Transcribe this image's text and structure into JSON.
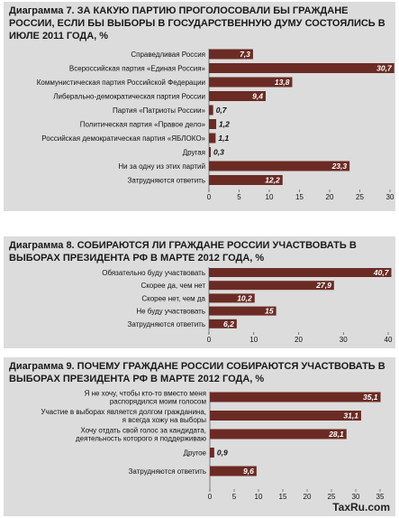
{
  "chart_data": [
    {
      "type": "bar",
      "orientation": "horizontal",
      "title": "Диаграмма 7. ЗА КАКУЮ ПАРТИЮ ПРОГОЛОСОВАЛИ БЫ ГРАЖДАНЕ РОССИИ, ЕСЛИ БЫ ВЫБОРЫ В ГОСУДАРСТВЕННУЮ ДУМУ СОСТОЯЛИСЬ В ИЮЛЕ 2011 ГОДА, %",
      "categories": [
        "Справедливая Россия",
        "Всероссийская партия «Единая Россия»",
        "Коммунистическая партия Российской Федерации",
        "Либерально-демократическая партия России",
        "Партия «Патриоты России»",
        "Политическая партия «Правое дело»",
        "Российская демократическая партия «ЯБЛОКО»",
        "Другая",
        "Ни за одну из этих партий",
        "Затрудняются ответить"
      ],
      "values": [
        7.3,
        30.7,
        13.8,
        9.4,
        0.7,
        1.2,
        1.1,
        0.3,
        23.3,
        12.2
      ],
      "value_labels": [
        "7,3",
        "30,7",
        "13,8",
        "9,4",
        "0,7",
        "1,2",
        "1,1",
        "0,3",
        "23,3",
        "12,2"
      ],
      "xlim": [
        0,
        30
      ],
      "ticks": [
        "0",
        "5",
        "10",
        "15",
        "20",
        "25",
        "30"
      ]
    },
    {
      "type": "bar",
      "orientation": "horizontal",
      "title": "Диаграмма 8. СОБИРАЮТСЯ ЛИ ГРАЖДАНЕ РОССИИ УЧАСТВОВАТЬ В ВЫБОРАХ ПРЕЗИДЕНТА РФ В МАРТЕ 2012 ГОДА, %",
      "categories": [
        "Обязательно буду участвовать",
        "Скорее да, чем нет",
        "Скорее нет, чем да",
        "Не буду участвовать",
        "Затрудняются ответить"
      ],
      "values": [
        40.7,
        27.9,
        10.2,
        15,
        6.2
      ],
      "value_labels": [
        "40,7",
        "27,9",
        "10,2",
        "15",
        "6,2"
      ],
      "xlim": [
        0,
        40
      ],
      "ticks": [
        "0",
        "10",
        "20",
        "30",
        "40"
      ]
    },
    {
      "type": "bar",
      "orientation": "horizontal",
      "title": "Диаграмма 9. ПОЧЕМУ ГРАЖДАНЕ РОССИИ СОБИРАЮТСЯ УЧАСТВОВАТЬ В ВЫБОРАХ ПРЕЗИДЕНТА РФ В МАРТЕ 2012 ГОДА, %",
      "categories": [
        [
          "Я не хочу, чтобы кто-то вместо меня",
          "распорядился моим голосом"
        ],
        [
          "Участие в выборах является долгом гражданина,",
          "я всегда хожу на выборы"
        ],
        [
          "Хочу отдать свой голос за кандидата,",
          "деятельность которого я поддерживаю"
        ],
        [
          "Другое"
        ],
        [
          "Затрудняются ответить"
        ]
      ],
      "values": [
        35.1,
        31.1,
        28.1,
        0.9,
        9.6
      ],
      "value_labels": [
        "35,1",
        "31,1",
        "28,1",
        "0,9",
        "9,6"
      ],
      "xlim": [
        0,
        35
      ],
      "ticks": [
        "0",
        "5",
        "10",
        "15",
        "20",
        "25",
        "30",
        "35"
      ]
    }
  ],
  "colors": {
    "bar": "#6b2b24",
    "panel": "#dcdcdc"
  },
  "watermark": "TaxRu.com"
}
